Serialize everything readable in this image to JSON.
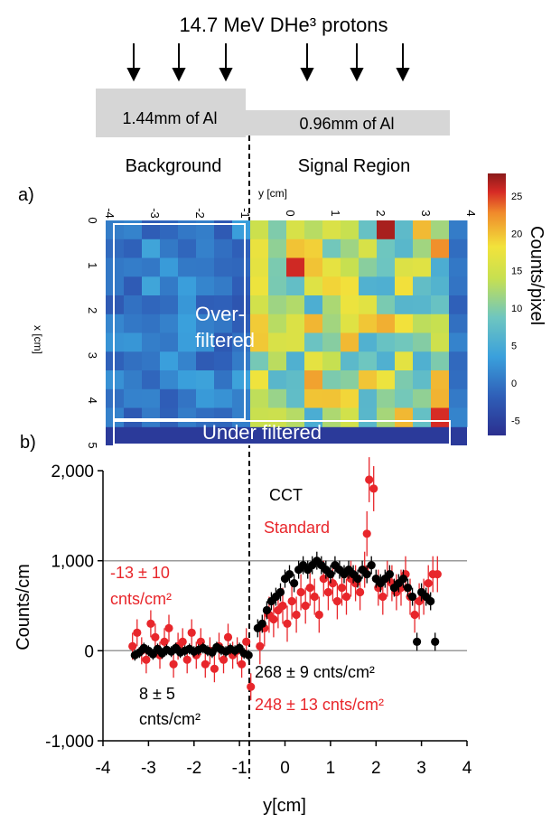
{
  "header": {
    "beam_label": "14.7 MeV DHe³ protons",
    "filter_left": "1.44mm of Al",
    "filter_right": "0.96mm of Al",
    "region_left": "Background",
    "region_right": "Signal Region"
  },
  "panel_a": {
    "label": "a)",
    "y_axis_title": "y [cm]",
    "x_axis_title": "x [cm]",
    "y_ticks": [
      "-4",
      "-3",
      "-2",
      "-1",
      "0",
      "1",
      "2",
      "3",
      "4"
    ],
    "x_ticks": [
      "0",
      "1",
      "2",
      "3",
      "4",
      "5"
    ],
    "box_overfiltered": "Over-\nfiltered",
    "box_underfiltered": "Under filtered",
    "colorbar_title": "Counts/pixel",
    "colorbar_ticks": [
      "25",
      "20",
      "15",
      "10",
      "5",
      "0",
      "-5"
    ],
    "colorbar_range": [
      -7,
      28
    ],
    "colors": {
      "low": "#2b3a9a",
      "mid": "#6ec6c0",
      "high": "#f2e33b",
      "max": "#8b1a1a"
    }
  },
  "chart_data": {
    "type": "scatter",
    "panel_label": "b)",
    "xlabel": "y[cm]",
    "ylabel": "Counts/cm",
    "xlim": [
      -4,
      4
    ],
    "ylim": [
      -1000,
      2000
    ],
    "x_ticks": [
      "-4",
      "-3",
      "-2",
      "-1",
      "0",
      "1",
      "2",
      "3",
      "4"
    ],
    "y_ticks": [
      "-1,000",
      "0",
      "1,000",
      "2,000"
    ],
    "grid": "horizontal at 0 and 1,000",
    "legend": [
      {
        "name": "CCT",
        "color": "#000000"
      },
      {
        "name": "Standard",
        "color": "#e8262b"
      }
    ],
    "annotations": {
      "standard_background": "-13 ± 10\ncnts/cm²",
      "cct_background": "8 ± 5\ncnts/cm²",
      "cct_signal": "268 ± 9 cnts/cm²",
      "standard_signal": "248 ± 13 cnts/cm²"
    },
    "divider_x": -0.7,
    "series": [
      {
        "name": "CCT",
        "color": "#000000",
        "x": [
          -3.3,
          -3.2,
          -3.1,
          -3.0,
          -2.9,
          -2.8,
          -2.7,
          -2.6,
          -2.5,
          -2.4,
          -2.3,
          -2.2,
          -2.1,
          -2.0,
          -1.9,
          -1.8,
          -1.7,
          -1.6,
          -1.5,
          -1.4,
          -1.3,
          -1.2,
          -1.1,
          -1.0,
          -0.9,
          -0.8,
          -0.6,
          -0.5,
          -0.4,
          -0.3,
          -0.2,
          -0.1,
          0.0,
          0.1,
          0.2,
          0.3,
          0.4,
          0.5,
          0.6,
          0.7,
          0.8,
          0.9,
          1.0,
          1.1,
          1.2,
          1.3,
          1.4,
          1.5,
          1.6,
          1.7,
          1.8,
          1.9,
          2.0,
          2.1,
          2.2,
          2.3,
          2.4,
          2.5,
          2.6,
          2.7,
          2.8,
          2.9,
          3.0,
          3.1,
          3.2,
          3.3
        ],
        "y": [
          -50,
          -20,
          30,
          0,
          -40,
          20,
          -30,
          10,
          -10,
          30,
          -20,
          0,
          20,
          -10,
          10,
          30,
          0,
          -20,
          40,
          10,
          -10,
          20,
          0,
          30,
          -30,
          -50,
          250,
          300,
          450,
          550,
          600,
          650,
          800,
          850,
          750,
          900,
          950,
          900,
          950,
          1000,
          950,
          900,
          850,
          950,
          900,
          850,
          900,
          850,
          800,
          900,
          850,
          950,
          800,
          750,
          800,
          850,
          700,
          750,
          800,
          700,
          600,
          100,
          650,
          600,
          550,
          100
        ],
        "err": [
          60,
          60,
          60,
          60,
          60,
          60,
          60,
          60,
          60,
          60,
          60,
          60,
          60,
          60,
          60,
          60,
          60,
          60,
          60,
          60,
          60,
          60,
          60,
          60,
          60,
          60,
          100,
          100,
          100,
          100,
          100,
          100,
          100,
          100,
          100,
          100,
          100,
          100,
          100,
          100,
          100,
          100,
          100,
          100,
          100,
          100,
          100,
          100,
          100,
          100,
          100,
          100,
          100,
          100,
          100,
          100,
          100,
          100,
          100,
          100,
          100,
          100,
          100,
          100,
          100,
          100
        ]
      },
      {
        "name": "Standard",
        "color": "#e8262b",
        "x": [
          -3.35,
          -3.25,
          -3.15,
          -3.05,
          -2.95,
          -2.85,
          -2.75,
          -2.65,
          -2.55,
          -2.45,
          -2.35,
          -2.25,
          -2.15,
          -2.05,
          -1.95,
          -1.85,
          -1.75,
          -1.65,
          -1.55,
          -1.45,
          -1.35,
          -1.25,
          -1.15,
          -1.05,
          -0.95,
          -0.85,
          -0.75,
          -0.55,
          -0.45,
          -0.35,
          -0.25,
          -0.15,
          -0.05,
          0.05,
          0.15,
          0.25,
          0.35,
          0.45,
          0.55,
          0.65,
          0.75,
          0.85,
          0.95,
          1.05,
          1.15,
          1.25,
          1.35,
          1.45,
          1.55,
          1.65,
          1.75,
          1.8,
          1.85,
          1.95,
          2.05,
          2.15,
          2.25,
          2.35,
          2.45,
          2.55,
          2.65,
          2.75,
          2.85,
          2.95,
          3.05,
          3.15,
          3.25,
          3.35
        ],
        "y": [
          50,
          200,
          0,
          -100,
          300,
          150,
          -50,
          100,
          250,
          -150,
          50,
          100,
          -100,
          200,
          -50,
          100,
          -150,
          0,
          -200,
          50,
          -100,
          150,
          -50,
          0,
          -150,
          100,
          -400,
          50,
          250,
          400,
          350,
          450,
          500,
          300,
          550,
          400,
          650,
          500,
          700,
          600,
          400,
          800,
          650,
          750,
          550,
          700,
          600,
          800,
          750,
          650,
          900,
          1300,
          1900,
          1800,
          700,
          600,
          800,
          750,
          650,
          700,
          850,
          600,
          400,
          550,
          600,
          750,
          850,
          850
        ],
        "err": [
          150,
          150,
          150,
          150,
          150,
          150,
          150,
          150,
          150,
          150,
          150,
          150,
          150,
          150,
          150,
          150,
          150,
          150,
          150,
          150,
          150,
          150,
          150,
          150,
          150,
          150,
          150,
          200,
          200,
          200,
          200,
          200,
          200,
          200,
          200,
          200,
          200,
          200,
          200,
          200,
          200,
          200,
          200,
          200,
          200,
          200,
          200,
          200,
          200,
          200,
          200,
          250,
          250,
          250,
          200,
          200,
          200,
          200,
          200,
          200,
          200,
          200,
          200,
          200,
          200,
          200,
          200,
          200
        ]
      }
    ]
  }
}
